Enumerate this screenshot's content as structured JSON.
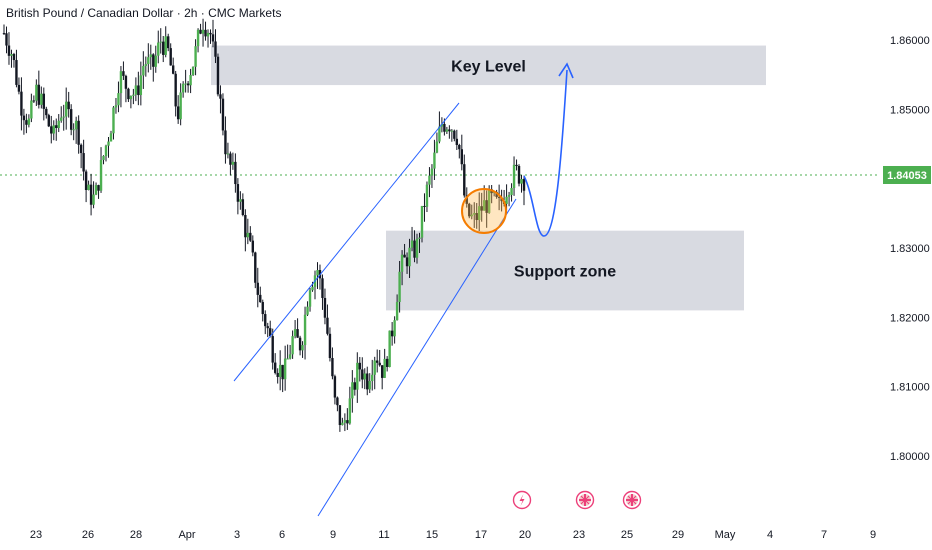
{
  "chart_data": {
    "type": "candlestick",
    "title": "British Pound / Canadian Dollar · 2h · CMC Markets",
    "last_price": 1.84053,
    "last_price_label": "1.84053",
    "ylim": [
      1.79,
      1.867
    ],
    "y_ticks": [
      {
        "value": 1.86,
        "label": "1.86000"
      },
      {
        "value": 1.85,
        "label": "1.85000"
      },
      {
        "value": 1.83,
        "label": "1.83000"
      },
      {
        "value": 1.82,
        "label": "1.82000"
      },
      {
        "value": 1.81,
        "label": "1.81000"
      },
      {
        "value": 1.8,
        "label": "1.80000"
      }
    ],
    "x_ticks": [
      "23",
      "26",
      "28",
      "Apr",
      "3",
      "6",
      "9",
      "11",
      "15",
      "17",
      "20",
      "23",
      "25",
      "29",
      "May",
      "4",
      "7",
      "9"
    ],
    "zones": [
      {
        "label": "Key Level",
        "low": 1.8535,
        "high": 1.8592
      },
      {
        "label": "Support zone",
        "low": 1.821,
        "high": 1.8325
      }
    ],
    "close_path": [
      1.861,
      1.858,
      1.851,
      1.848,
      1.853,
      1.849,
      1.846,
      1.85,
      1.849,
      1.847,
      1.838,
      1.837,
      1.843,
      1.848,
      1.855,
      1.853,
      1.852,
      1.857,
      1.856,
      1.86,
      1.858,
      1.849,
      1.854,
      1.857,
      1.863,
      1.861,
      1.853,
      1.843,
      1.84,
      1.834,
      1.829,
      1.822,
      1.818,
      1.813,
      1.812,
      1.817,
      1.816,
      1.825,
      1.827,
      1.82,
      1.808,
      1.804,
      1.808,
      1.813,
      1.811,
      1.815,
      1.812,
      1.818,
      1.827,
      1.829,
      1.83,
      1.837,
      1.842,
      1.848,
      1.848,
      1.846,
      1.835,
      1.834,
      1.836,
      1.837,
      1.836,
      1.839,
      1.841,
      1.84
    ]
  },
  "colors": {
    "up": "#26a69a",
    "down": "#131722",
    "bull_body": "#4caf50",
    "channel": "#2962ff",
    "projection": "#2962ff",
    "highlight_circle": "#f57c00",
    "zone_fill": "#d1d4dc",
    "price_label_bg": "#4caf50",
    "price_line": "#4caf50",
    "event_icon": "#ec407a"
  },
  "events": [
    {
      "icon": "lightning-icon"
    },
    {
      "icon": "uk-flag-icon"
    },
    {
      "icon": "uk-flag-icon"
    }
  ]
}
